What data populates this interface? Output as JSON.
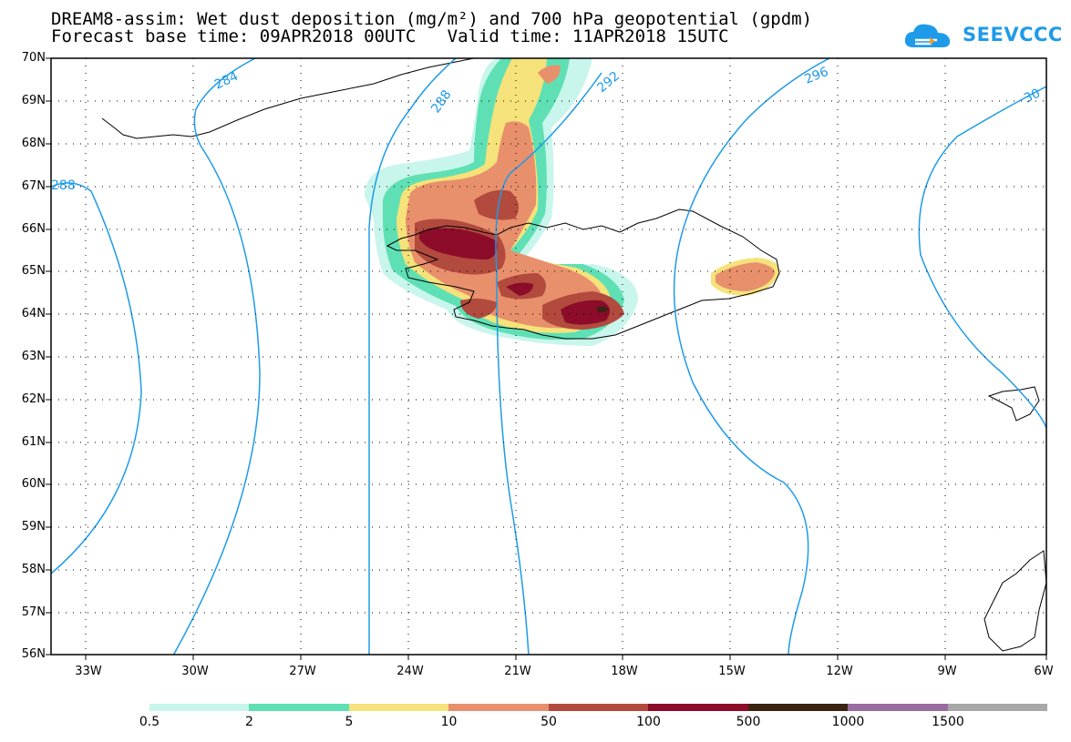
{
  "title": {
    "line1": "DREAM8-assim: Wet dust deposition (mg/m²) and 700 hPa geopotential (gpdm)",
    "line2": "Forecast base time: 09APR2018 00UTC   Valid time: 11APR2018 15UTC"
  },
  "logo": {
    "text": "SEEVCCC",
    "color": "#1e9be8",
    "icon": "cloud-icon"
  },
  "map": {
    "lat_labels": [
      "70N",
      "69N",
      "68N",
      "67N",
      "66N",
      "65N",
      "64N",
      "63N",
      "62N",
      "61N",
      "60N",
      "59N",
      "58N",
      "57N",
      "56N"
    ],
    "lon_labels": [
      "33W",
      "30W",
      "27W",
      "24W",
      "21W",
      "18W",
      "15W",
      "12W",
      "9W",
      "6W"
    ],
    "lat_range": [
      56,
      70
    ],
    "lon_range": [
      -34.2,
      -6
    ],
    "contour_color": "#1e9be8",
    "contour_labels": [
      "284",
      "288",
      "292",
      "296",
      "30",
      "288"
    ]
  },
  "legend": {
    "colors": [
      "#c8f5ec",
      "#5ee0b4",
      "#f6e27a",
      "#e88f6c",
      "#b24a3e",
      "#8c0c2a",
      "#3a2412",
      "#9a6aa2",
      "#a8a8a8"
    ],
    "labels": [
      "0.5",
      "2",
      "5",
      "10",
      "50",
      "100",
      "500",
      "1000",
      "1500"
    ]
  }
}
